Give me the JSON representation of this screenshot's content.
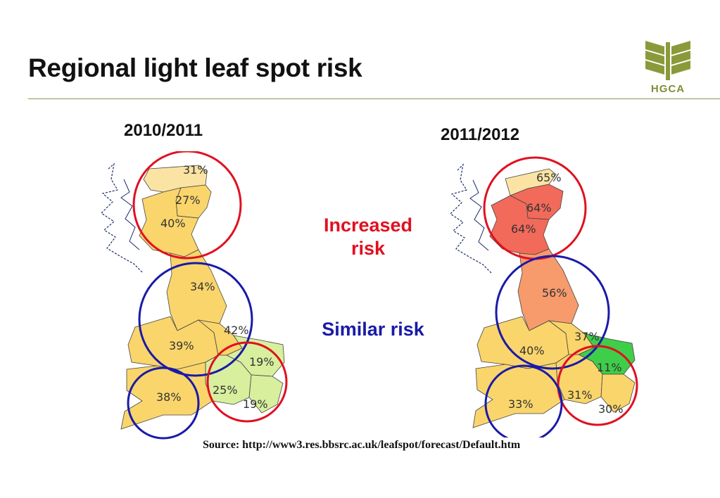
{
  "title": "Regional light leaf spot risk",
  "logo": {
    "text": "HGCA",
    "color": "#8a9a3a"
  },
  "maps": [
    {
      "year": "2010/2011",
      "regions": {
        "n_scotland": "31%",
        "ne_scotland": "27%",
        "s_scotland": "40%",
        "north_england": "34%",
        "east_midlands": "42%",
        "west_midlands": "39%",
        "east_anglia": "19%",
        "south_east": "25%",
        "south_east_east": "19%",
        "south_west": "38%"
      }
    },
    {
      "year": "2011/2012",
      "regions": {
        "n_scotland": "65%",
        "ne_scotland": "64%",
        "s_scotland": "64%",
        "north_england": "56%",
        "east_midlands": "37%",
        "west_midlands": "40%",
        "east_anglia": "11%",
        "south_east": "31%",
        "south_east_east": "30%",
        "south_west": "33%"
      }
    }
  ],
  "legend": {
    "increased": "Increased risk",
    "similar": "Similar risk",
    "increased_color": "#e01020",
    "similar_color": "#1a1aa8"
  },
  "risk_colors": {
    "low": "#9de07a",
    "moderate": "#fad56b",
    "high": "#f79a6c",
    "very_high": "#f26a5a"
  },
  "source": "Source: http://www3.res.bbsrc.ac.uk/leafspot/forecast/Default.htm"
}
